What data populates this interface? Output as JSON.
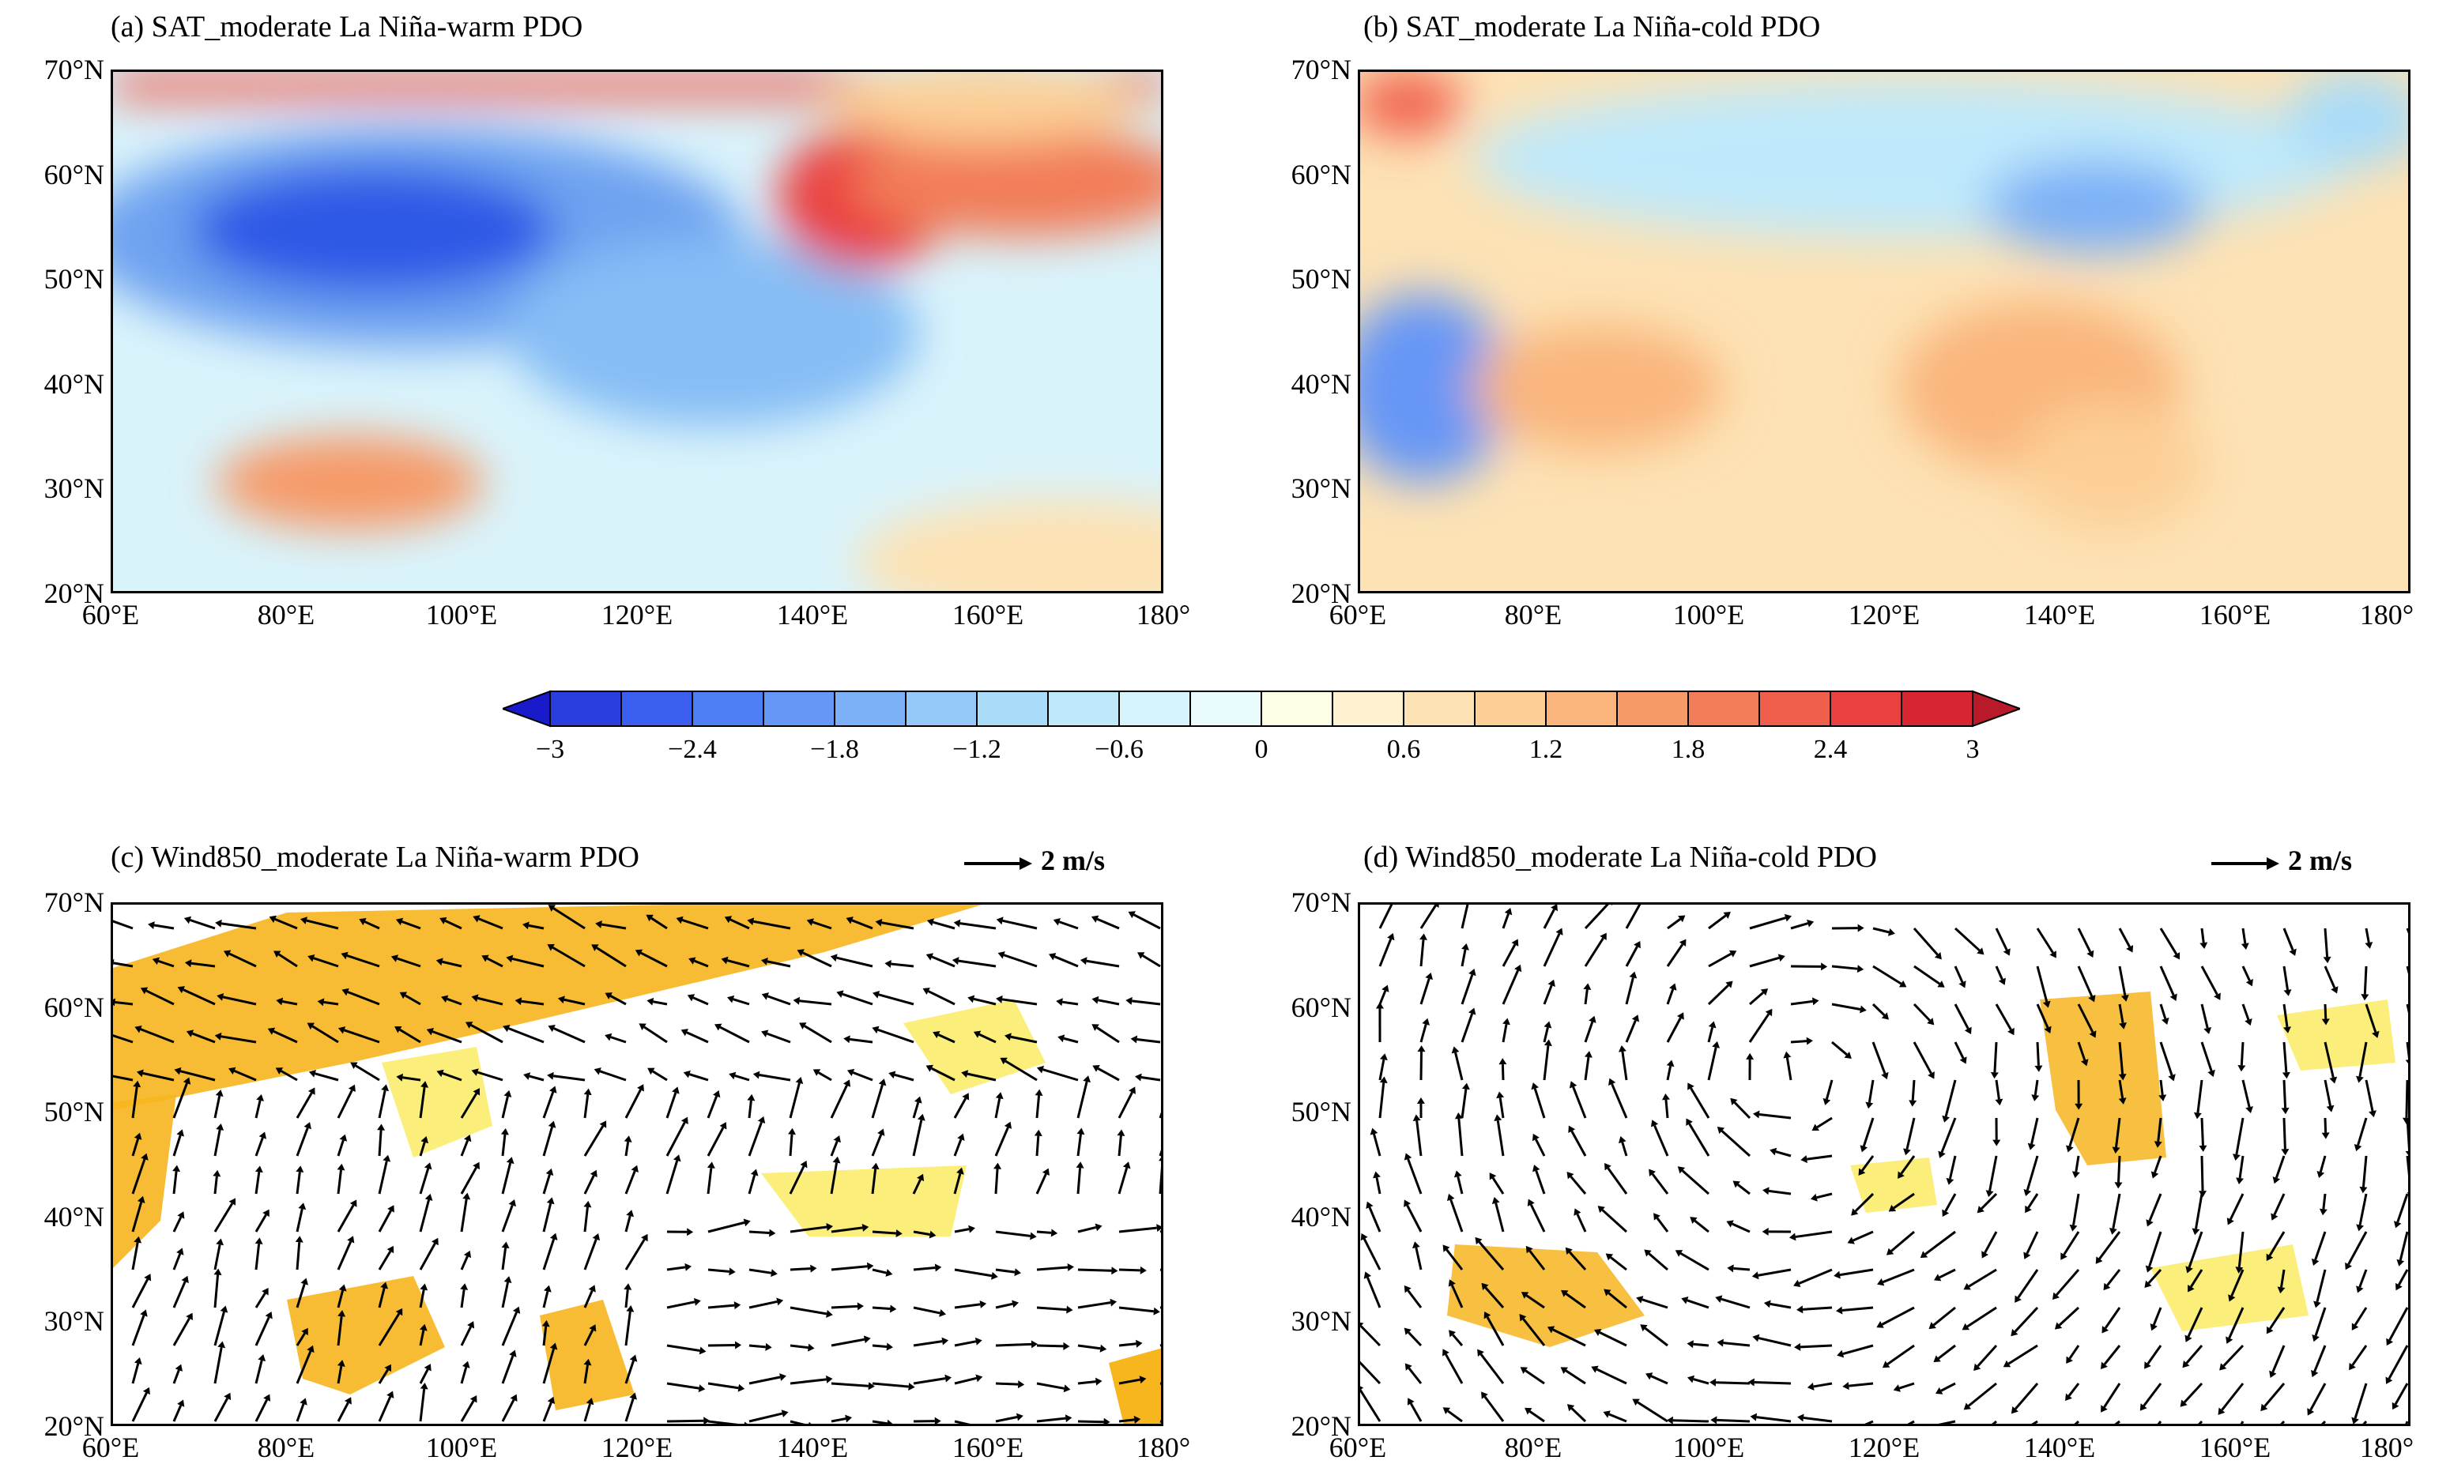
{
  "panels": [
    {
      "id": "a",
      "title": "(a) SAT_moderate La Niña-warm PDO"
    },
    {
      "id": "b",
      "title": "(b) SAT_moderate La Niña-cold PDO"
    },
    {
      "id": "c",
      "title": "(c) Wind850_moderate La Niña-warm PDO",
      "ref_vector": "2 m/s"
    },
    {
      "id": "d",
      "title": "(d) Wind850_moderate La Niña-cold PDO",
      "ref_vector": "2 m/s"
    }
  ],
  "axes": {
    "lat_labels": [
      "70°N",
      "60°N",
      "50°N",
      "40°N",
      "30°N",
      "20°N"
    ],
    "lon_labels": [
      "60°E",
      "80°E",
      "100°E",
      "120°E",
      "140°E",
      "160°E",
      "180°"
    ]
  },
  "colorbar": {
    "labels": [
      "−3",
      "−2.4",
      "−1.8",
      "−1.2",
      "−0.6",
      "0",
      "0.6",
      "1.2",
      "1.8",
      "2.4",
      "3"
    ],
    "colors": [
      "#1a1acd",
      "#2a3ee0",
      "#3a5ef0",
      "#4f7ff5",
      "#6696f6",
      "#7cb0f7",
      "#94c8f8",
      "#a8dcf9",
      "#bfe9fb",
      "#d6f4fc",
      "#eafbfd",
      "#ffffe6",
      "#fef2d0",
      "#fde2b4",
      "#fccf96",
      "#f9b57c",
      "#f69a68",
      "#f27d58",
      "#ef5f4b",
      "#ea4140",
      "#d82532",
      "#b81a2a"
    ]
  },
  "shading_colors": {
    "high": "#f7b51e",
    "low": "#fbee7a"
  }
}
